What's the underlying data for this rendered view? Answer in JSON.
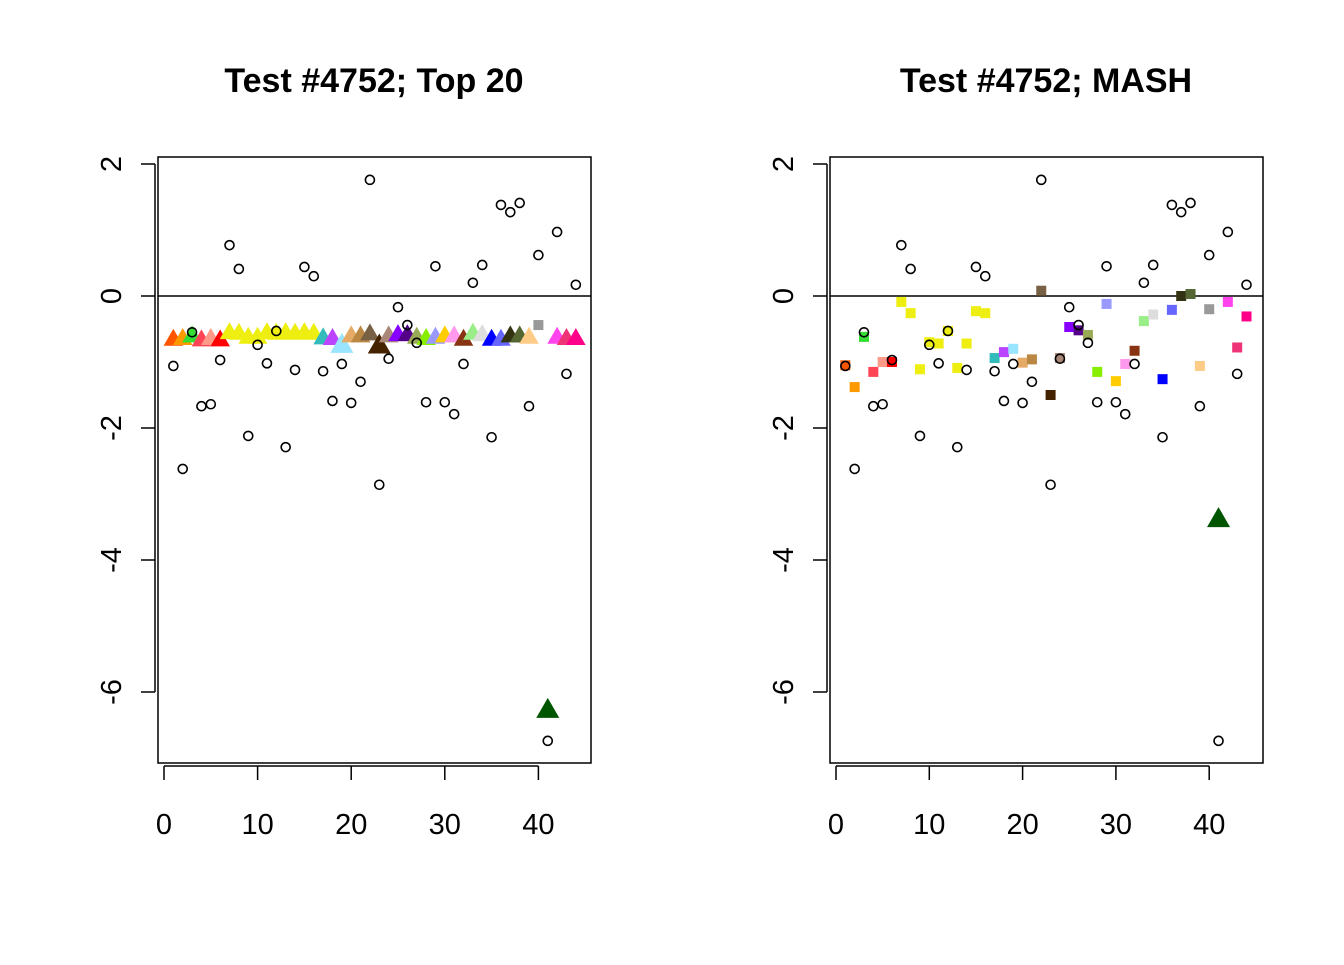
{
  "chart_data": [
    {
      "type": "scatter",
      "title": "Test #4752; Top 20",
      "xlabel": "",
      "ylabel": "",
      "xlim": [
        0,
        45
      ],
      "ylim": [
        -7,
        2.2
      ],
      "x_ticks": [
        "0",
        "10",
        "20",
        "30",
        "40"
      ],
      "x_tick_values": [
        0,
        10,
        20,
        30,
        40
      ],
      "y_ticks": [
        "2",
        "0",
        "-2",
        "-4",
        "-6"
      ],
      "y_tick_values": [
        2,
        0,
        -2,
        -4,
        -6
      ],
      "grid": false,
      "reference_line_y": 0,
      "observed": [
        -1.06,
        -2.62,
        -0.55,
        -1.67,
        -1.64,
        -0.97,
        0.77,
        0.41,
        -2.12,
        -0.74,
        -1.02,
        -0.53,
        -2.29,
        -1.12,
        0.44,
        0.3,
        -1.14,
        -1.59,
        -1.03,
        -1.62,
        -1.3,
        1.76,
        -2.86,
        -0.95,
        -0.17,
        -0.44,
        -0.71,
        -1.61,
        0.45,
        -1.61,
        -1.79,
        -1.03,
        0.2,
        0.47,
        -2.14,
        1.38,
        1.27,
        1.41,
        -1.67,
        0.62,
        -6.74,
        0.97,
        -1.18,
        0.17
      ],
      "estimates": [
        -0.65,
        -0.64,
        -0.6,
        -0.66,
        -0.64,
        -0.66,
        -0.55,
        -0.56,
        -0.62,
        -0.62,
        -0.55,
        -0.56,
        -0.55,
        -0.56,
        -0.55,
        -0.56,
        -0.63,
        -0.64,
        -0.74,
        -0.6,
        -0.6,
        -0.57,
        -0.75,
        -0.6,
        -0.58,
        -0.58,
        -0.62,
        -0.64,
        -0.62,
        -0.6,
        -0.6,
        -0.65,
        -0.56,
        -0.58,
        -0.65,
        -0.65,
        -0.6,
        -0.6,
        -0.62,
        -0.44,
        -6.27,
        -0.62,
        -0.64,
        -0.64
      ],
      "estimate_markers": [
        "triangle",
        "triangle",
        "triangle",
        "triangle",
        "triangle",
        "triangle",
        "triangle",
        "triangle",
        "triangle",
        "triangle",
        "triangle",
        "triangle",
        "triangle",
        "triangle",
        "triangle",
        "triangle",
        "triangle",
        "triangle",
        "triangle",
        "triangle",
        "triangle",
        "triangle",
        "triangle",
        "triangle",
        "triangle",
        "triangle",
        "triangle",
        "triangle",
        "triangle",
        "triangle",
        "triangle",
        "triangle",
        "triangle",
        "triangle",
        "triangle",
        "triangle",
        "triangle",
        "triangle",
        "triangle",
        "square",
        "triangle",
        "triangle",
        "triangle",
        "triangle"
      ]
    },
    {
      "type": "scatter",
      "title": "Test #4752; MASH",
      "xlabel": "",
      "ylabel": "",
      "xlim": [
        0,
        45
      ],
      "ylim": [
        -7,
        2.2
      ],
      "x_ticks": [
        "0",
        "10",
        "20",
        "30",
        "40"
      ],
      "x_tick_values": [
        0,
        10,
        20,
        30,
        40
      ],
      "y_ticks": [
        "2",
        "0",
        "-2",
        "-4",
        "-6"
      ],
      "y_tick_values": [
        2,
        0,
        -2,
        -4,
        -6
      ],
      "grid": false,
      "reference_line_y": 0,
      "observed": [
        -1.06,
        -2.62,
        -0.55,
        -1.67,
        -1.64,
        -0.97,
        0.77,
        0.41,
        -2.12,
        -0.74,
        -1.02,
        -0.53,
        -2.29,
        -1.12,
        0.44,
        0.3,
        -1.14,
        -1.59,
        -1.03,
        -1.62,
        -1.3,
        1.76,
        -2.86,
        -0.95,
        -0.17,
        -0.44,
        -0.71,
        -1.61,
        0.45,
        -1.61,
        -1.79,
        -1.03,
        0.2,
        0.47,
        -2.14,
        1.38,
        1.27,
        1.41,
        -1.67,
        0.62,
        -6.74,
        0.97,
        -1.18,
        0.17
      ],
      "estimates": [
        -1.05,
        -1.38,
        -0.62,
        -1.15,
        -1.0,
        -1.0,
        -0.09,
        -0.26,
        -1.11,
        -0.7,
        -0.72,
        -0.53,
        -1.09,
        -0.72,
        -0.23,
        -0.26,
        -0.94,
        -0.85,
        -0.8,
        -1.01,
        -0.96,
        0.08,
        -1.5,
        -0.94,
        -0.47,
        -0.52,
        -0.59,
        -1.15,
        -0.12,
        -1.29,
        -1.03,
        -0.83,
        -0.38,
        -0.28,
        -1.26,
        -0.21,
        0.0,
        0.03,
        -1.06,
        -0.2,
        -3.38,
        -0.09,
        -0.78,
        -0.31
      ],
      "estimate_markers": [
        "square",
        "square",
        "square",
        "square",
        "square",
        "square",
        "square",
        "square",
        "square",
        "square",
        "square",
        "square",
        "square",
        "square",
        "square",
        "square",
        "square",
        "square",
        "square",
        "square",
        "square",
        "square",
        "square",
        "square",
        "square",
        "square",
        "square",
        "square",
        "square",
        "square",
        "square",
        "square",
        "square",
        "square",
        "square",
        "square",
        "square",
        "square",
        "square",
        "square",
        "triangle",
        "square",
        "square",
        "square"
      ]
    }
  ],
  "colors": [
    "#FF5500",
    "#FF9900",
    "#33DD33",
    "#FF4455",
    "#FF9988",
    "#FF0000",
    "#EEEE11",
    "#EEEE11",
    "#EEEE11",
    "#EEEE11",
    "#EEEE11",
    "#EEEE11",
    "#EEEE11",
    "#EEEE11",
    "#EEEE11",
    "#EEEE11",
    "#33BBBB",
    "#BB44FF",
    "#99E5FF",
    "#E5AA66",
    "#BB8844",
    "#776044",
    "#442200",
    "#AA8877",
    "#8800FF",
    "#550088",
    "#99AA55",
    "#88EE00",
    "#9999FF",
    "#FFCC00",
    "#FF99EE",
    "#883311",
    "#99EE88",
    "#DDDDDD",
    "#0000FF",
    "#6666FF",
    "#333311",
    "#556633",
    "#FFCC88",
    "#999999",
    "#005500",
    "#FF44EE",
    "#EE3377",
    "#FF0088"
  ]
}
